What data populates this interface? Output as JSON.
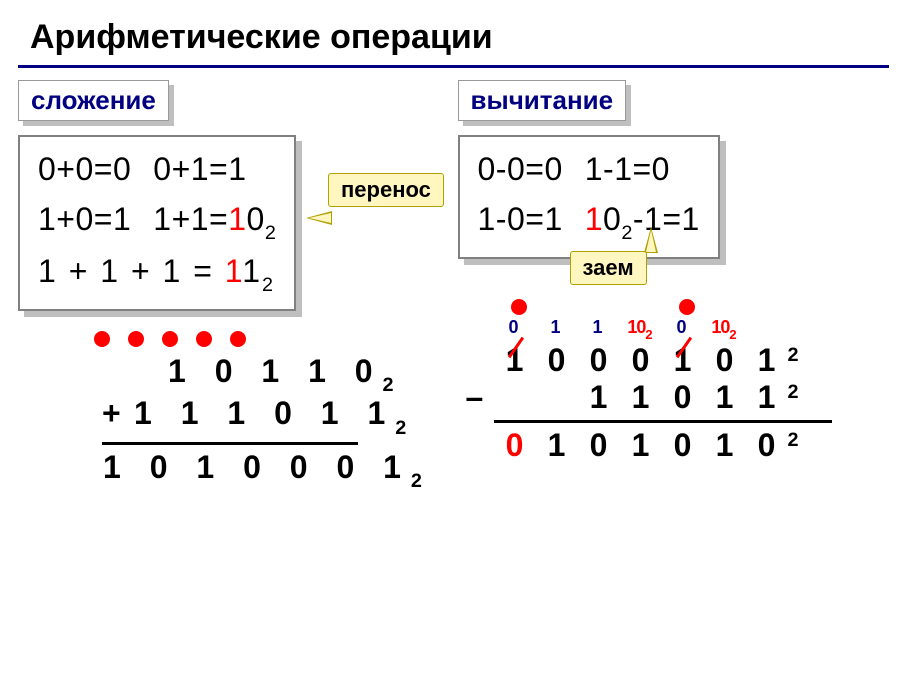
{
  "title": "Арифметические операции",
  "colors": {
    "accent": "#000080",
    "highlight": "#ff0000",
    "callout_bg": "#fff6c0",
    "callout_border": "#b0a000",
    "text": "#000000",
    "background": "#ffffff",
    "shadow": "#bfbfbf",
    "box_border": "#808080"
  },
  "addition": {
    "label": "сложение",
    "callout": "перенос",
    "rules": {
      "r1a": "0+0=0",
      "r1b": "0+1=1",
      "r2a": "1+0=1",
      "r2b_prefix": "1+1=",
      "r2b_emph": "1",
      "r2b_rest": "0",
      "r2b_sub": "2",
      "r3_prefix": "1 + 1 + 1 = ",
      "r3_emph": "1",
      "r3_rest": "1",
      "r3_sub": "2"
    },
    "example": {
      "carry_dots": 5,
      "operand1": "1 0 1 1 0",
      "operand1_sub": "2",
      "op_sign": "+",
      "operand2": "1 1 1 0 1 1",
      "operand2_sub": "2",
      "result": "1 0 1 0 0 0 1",
      "result_sub": "2"
    }
  },
  "subtraction": {
    "label": "вычитание",
    "callout": "заем",
    "rules": {
      "r1a": "0-0=0",
      "r1b": "1-1=0",
      "r2a": "1-0=1",
      "r2b_emph": "1",
      "r2b_mid": "0",
      "r2b_sub": "2",
      "r2b_suffix": "-1=1"
    },
    "example": {
      "borrow_dots": [
        0,
        4
      ],
      "borrow_values": [
        {
          "text": "0",
          "cls": "blue"
        },
        {
          "text": "1",
          "cls": "blue"
        },
        {
          "text": "1",
          "cls": "blue"
        },
        {
          "text": "10",
          "sub": "2",
          "cls": "red"
        },
        {
          "text": "0",
          "cls": "blue"
        },
        {
          "text": "10",
          "sub": "2",
          "cls": "red"
        }
      ],
      "operand1": [
        {
          "d": "1",
          "strike": true
        },
        {
          "d": "0"
        },
        {
          "d": "0"
        },
        {
          "d": "0"
        },
        {
          "d": "1",
          "strike": true
        },
        {
          "d": "0"
        },
        {
          "d": "1"
        }
      ],
      "operand1_sub": "2",
      "op_sign": "–",
      "operand2": [
        "",
        "",
        "1",
        "1",
        "0",
        "1",
        "1"
      ],
      "operand2_sub": "2",
      "result": [
        "0",
        "1",
        "0",
        "1",
        "0",
        "1",
        "0"
      ],
      "result_first_red": true,
      "result_sub": "2"
    }
  }
}
